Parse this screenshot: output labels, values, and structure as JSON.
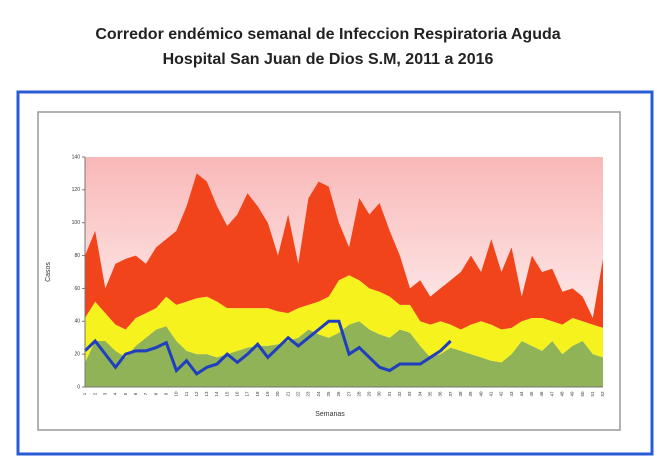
{
  "chart_data": {
    "type": "stacked_area",
    "title": "Corredor endémico semanal de Infeccion Respiratoria Aguda",
    "subtitle": "Hospital San Juan de Dios S.M,  2011 a 2016",
    "y_label": "Casos",
    "x_label": "Semanas",
    "categories": [
      "1",
      "2",
      "3",
      "4",
      "5",
      "6",
      "7",
      "8",
      "9",
      "10",
      "11",
      "12",
      "13",
      "14",
      "15",
      "16",
      "17",
      "18",
      "19",
      "20",
      "21",
      "22",
      "23",
      "24",
      "25",
      "26",
      "27",
      "28",
      "29",
      "30",
      "31",
      "32",
      "33",
      "34",
      "35",
      "36",
      "37",
      "38",
      "39",
      "40",
      "41",
      "42",
      "43",
      "44",
      "45",
      "46",
      "47",
      "48",
      "49",
      "50",
      "51",
      "52"
    ],
    "ylim": [
      0,
      140
    ],
    "yticks": [
      0,
      20,
      40,
      60,
      80,
      100,
      120,
      140
    ],
    "series": [
      {
        "color": "#8fb356",
        "values": [
          15,
          28,
          28,
          22,
          18,
          25,
          30,
          35,
          37,
          28,
          22,
          20,
          20,
          18,
          20,
          22,
          24,
          25,
          25,
          26,
          28,
          30,
          35,
          32,
          30,
          33,
          38,
          40,
          35,
          32,
          30,
          35,
          33,
          25,
          18,
          20,
          24,
          22,
          20,
          18,
          16,
          15,
          20,
          28,
          25,
          22,
          28,
          20,
          25,
          28,
          20,
          18
        ]
      },
      {
        "color": "#f5f21e",
        "values": [
          27,
          24,
          17,
          16,
          17,
          17,
          15,
          13,
          18,
          22,
          30,
          34,
          35,
          34,
          28,
          26,
          24,
          23,
          23,
          20,
          17,
          18,
          15,
          20,
          25,
          32,
          30,
          25,
          25,
          26,
          25,
          15,
          17,
          15,
          20,
          20,
          14,
          13,
          18,
          22,
          22,
          20,
          16,
          12,
          17,
          20,
          12,
          18,
          17,
          12,
          18,
          18
        ]
      },
      {
        "color": "#f2441a",
        "values": [
          38,
          43,
          15,
          37,
          43,
          38,
          30,
          37,
          35,
          45,
          58,
          76,
          70,
          58,
          50,
          57,
          70,
          62,
          52,
          34,
          60,
          27,
          65,
          73,
          67,
          35,
          17,
          50,
          45,
          54,
          40,
          30,
          10,
          25,
          17,
          20,
          27,
          35,
          42,
          30,
          52,
          35,
          49,
          15,
          38,
          28,
          32,
          20,
          18,
          15,
          4,
          42
        ]
      }
    ],
    "line": {
      "color": "#1f3fbf",
      "values": [
        22,
        28,
        20,
        12,
        20,
        22,
        22,
        24,
        27,
        10,
        16,
        8,
        12,
        14,
        20,
        15,
        20,
        26,
        18,
        24,
        30,
        25,
        30,
        35,
        40,
        40,
        20,
        24,
        18,
        12,
        10,
        14,
        14,
        14,
        18,
        22,
        28,
        null,
        null,
        null,
        null,
        null,
        null,
        null,
        null,
        null,
        null,
        null,
        null,
        null,
        null,
        null
      ]
    },
    "background_color": "#f9b8b8"
  }
}
